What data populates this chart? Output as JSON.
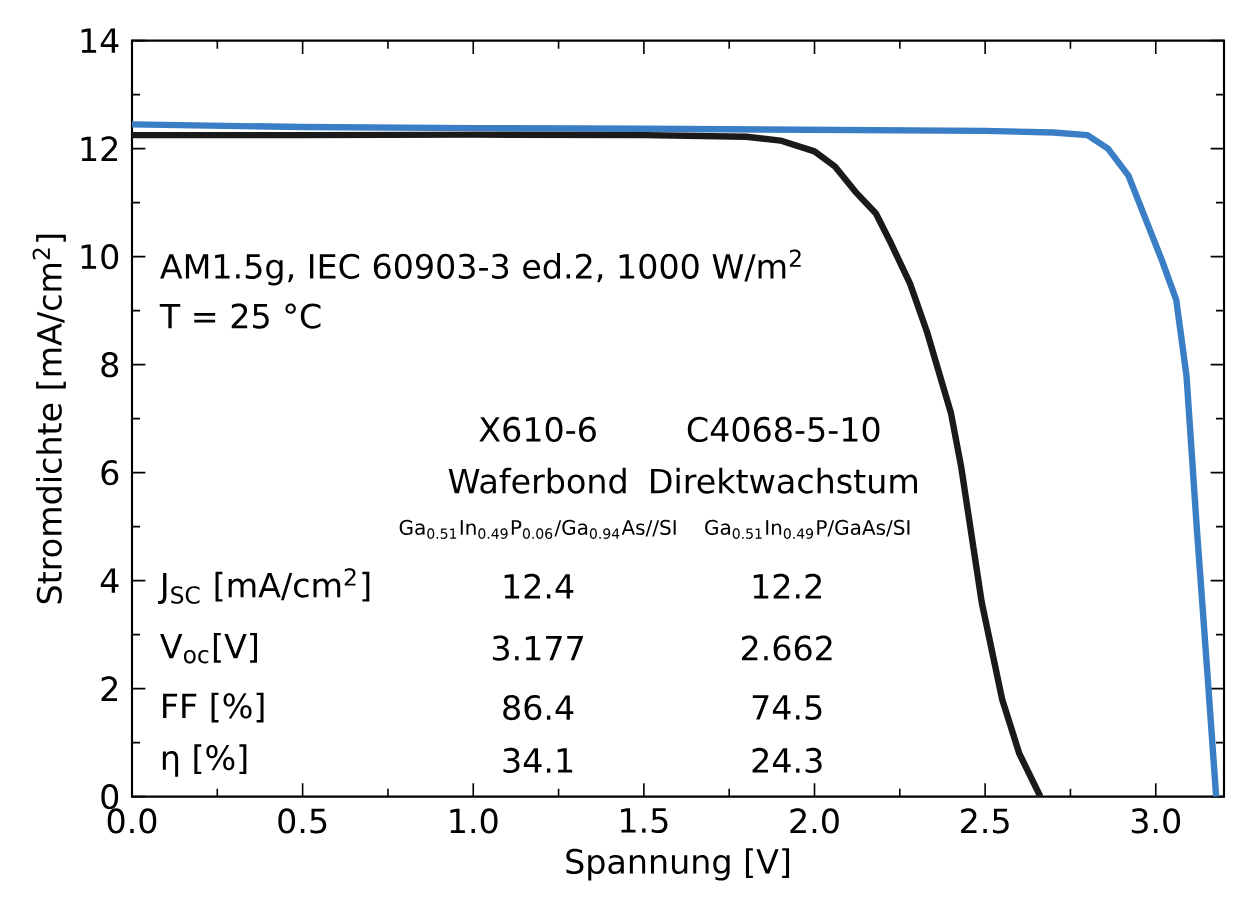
{
  "chart_data": {
    "type": "line",
    "xlabel": "Spannung [V]",
    "ylabel": "Stromdichte [mA/cm$^{2}$]",
    "xlim": [
      0,
      3.2
    ],
    "ylim": [
      0,
      14
    ],
    "xticks": [
      {
        "value": 0,
        "label": "0.0"
      },
      {
        "value": 0.5,
        "label": "0.5"
      },
      {
        "value": 1,
        "label": "1.0"
      },
      {
        "value": 1.5,
        "label": "1.5"
      },
      {
        "value": 2,
        "label": "2.0"
      },
      {
        "value": 2.5,
        "label": "2.5"
      },
      {
        "value": 3,
        "label": "3.0"
      }
    ],
    "yticks": [
      0,
      2,
      4,
      6,
      8,
      10,
      12,
      14
    ],
    "series": [
      {
        "color": "#3a7ec6",
        "x": [
          0,
          0.5,
          1,
          1.5,
          2,
          2.5,
          2.7,
          2.8,
          2.86,
          2.92,
          2.97,
          3.02,
          3.06,
          3.09,
          3.12,
          3.15,
          3.177
        ],
        "values": [
          12.45,
          12.4,
          12.38,
          12.37,
          12.35,
          12.33,
          12.3,
          12.25,
          12.0,
          11.5,
          10.7,
          9.9,
          9.2,
          7.8,
          5.0,
          2.4,
          0
        ]
      },
      {
        "color": "#1a1a1a",
        "x": [
          0,
          0.5,
          1,
          1.5,
          1.8,
          1.9,
          2.0,
          2.06,
          2.12,
          2.18,
          2.22,
          2.28,
          2.33,
          2.4,
          2.43,
          2.49,
          2.55,
          2.6,
          2.662
        ],
        "values": [
          12.25,
          12.25,
          12.26,
          12.25,
          12.22,
          12.15,
          11.95,
          11.67,
          11.2,
          10.8,
          10.3,
          9.5,
          8.6,
          7.1,
          6.1,
          3.6,
          1.8,
          0.8,
          0
        ]
      }
    ],
    "annotations": [
      "AM1.5g, IEC 60903-3 ed.2, 1000 W/m$^{2}$",
      "T = 25 °C",
      "X610-6",
      "Waferbond",
      "Ga$_{0.51}$In$_{0.49}$P$_{0.06}$/Ga$_{0.94}$As//SI",
      "C4068-5-10",
      "Direktwachstum",
      "Ga$_{0.51}$In$_{0.49}$P/GaAs/SI",
      "J$_{SC}$ [mA/cm$^{2}$]",
      "V$_{oc}$[V]",
      "FF [%]",
      "η [%]",
      "12.4",
      "3.177",
      "86.4",
      "34.1",
      "12.2",
      "2.662",
      "74.5",
      "24.3"
    ]
  }
}
